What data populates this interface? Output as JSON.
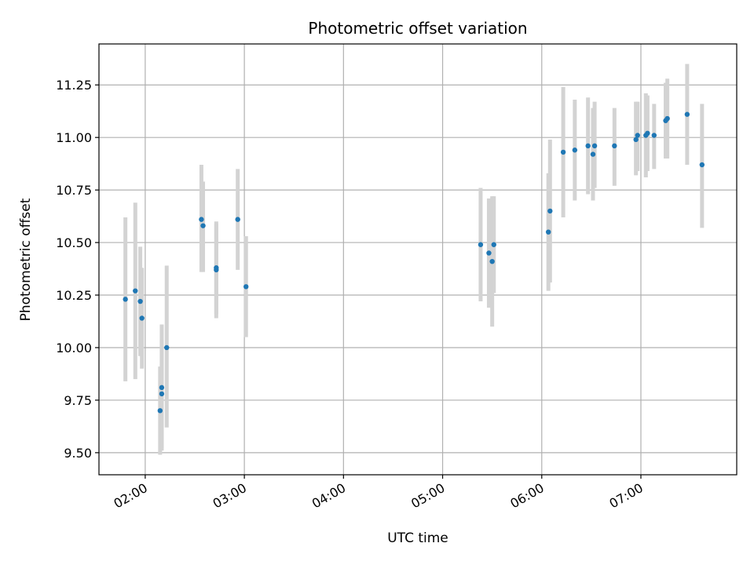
{
  "chart_data": {
    "type": "scatter",
    "title": "Photometric offset variation",
    "xlabel": "UTC time",
    "ylabel": "Photometric offset",
    "xlim": [
      "01:32",
      "07:58"
    ],
    "ylim": [
      9.395,
      11.445
    ],
    "x_ticks": [
      "02:00",
      "03:00",
      "04:00",
      "05:00",
      "06:00",
      "07:00"
    ],
    "y_ticks": [
      "9.50",
      "9.75",
      "10.00",
      "10.25",
      "10.50",
      "10.75",
      "11.00",
      "11.25"
    ],
    "grid": true,
    "legend": "none",
    "colors": {
      "point": "#1f77b4",
      "errorbar": "#d3d3d3",
      "grid": "#b0b0b0"
    },
    "points": [
      {
        "time": "01:48",
        "value": 10.23,
        "low": 9.84,
        "high": 10.62
      },
      {
        "time": "01:54",
        "value": 10.27,
        "low": 9.85,
        "high": 10.69
      },
      {
        "time": "01:57",
        "value": 10.22,
        "low": 9.96,
        "high": 10.48
      },
      {
        "time": "01:58",
        "value": 10.14,
        "low": 9.9,
        "high": 10.38
      },
      {
        "time": "02:09",
        "value": 9.7,
        "low": 9.49,
        "high": 9.91
      },
      {
        "time": "02:10",
        "value": 9.78,
        "low": 9.52,
        "high": 10.04
      },
      {
        "time": "02:10",
        "value": 9.81,
        "low": 9.51,
        "high": 10.11
      },
      {
        "time": "02:13",
        "value": 10.0,
        "low": 9.62,
        "high": 10.39
      },
      {
        "time": "02:34",
        "value": 10.61,
        "low": 10.36,
        "high": 10.87
      },
      {
        "time": "02:35",
        "value": 10.58,
        "low": 10.36,
        "high": 10.79
      },
      {
        "time": "02:43",
        "value": 10.37,
        "low": 10.14,
        "high": 10.6
      },
      {
        "time": "02:43",
        "value": 10.38,
        "low": 10.16,
        "high": 10.59
      },
      {
        "time": "02:56",
        "value": 10.61,
        "low": 10.37,
        "high": 10.85
      },
      {
        "time": "03:01",
        "value": 10.29,
        "low": 10.05,
        "high": 10.53
      },
      {
        "time": "05:23",
        "value": 10.49,
        "low": 10.22,
        "high": 10.76
      },
      {
        "time": "05:28",
        "value": 10.45,
        "low": 10.19,
        "high": 10.71
      },
      {
        "time": "05:30",
        "value": 10.41,
        "low": 10.1,
        "high": 10.72
      },
      {
        "time": "05:31",
        "value": 10.49,
        "low": 10.26,
        "high": 10.72
      },
      {
        "time": "06:04",
        "value": 10.55,
        "low": 10.27,
        "high": 10.83
      },
      {
        "time": "06:05",
        "value": 10.65,
        "low": 10.31,
        "high": 10.99
      },
      {
        "time": "06:13",
        "value": 10.93,
        "low": 10.62,
        "high": 11.24
      },
      {
        "time": "06:20",
        "value": 10.94,
        "low": 10.7,
        "high": 11.18
      },
      {
        "time": "06:28",
        "value": 10.96,
        "low": 10.73,
        "high": 11.19
      },
      {
        "time": "06:31",
        "value": 10.92,
        "low": 10.7,
        "high": 11.14
      },
      {
        "time": "06:32",
        "value": 10.96,
        "low": 10.76,
        "high": 11.17
      },
      {
        "time": "06:44",
        "value": 10.96,
        "low": 10.77,
        "high": 11.14
      },
      {
        "time": "06:57",
        "value": 10.99,
        "low": 10.82,
        "high": 11.17
      },
      {
        "time": "06:58",
        "value": 11.01,
        "low": 10.84,
        "high": 11.17
      },
      {
        "time": "07:03",
        "value": 11.01,
        "low": 10.81,
        "high": 11.21
      },
      {
        "time": "07:04",
        "value": 11.02,
        "low": 10.84,
        "high": 11.2
      },
      {
        "time": "07:08",
        "value": 11.01,
        "low": 10.85,
        "high": 11.16
      },
      {
        "time": "07:15",
        "value": 11.08,
        "low": 10.9,
        "high": 11.26
      },
      {
        "time": "07:16",
        "value": 11.09,
        "low": 10.9,
        "high": 11.28
      },
      {
        "time": "07:28",
        "value": 11.11,
        "low": 10.87,
        "high": 11.35
      },
      {
        "time": "07:37",
        "value": 10.87,
        "low": 10.57,
        "high": 11.16
      }
    ]
  }
}
